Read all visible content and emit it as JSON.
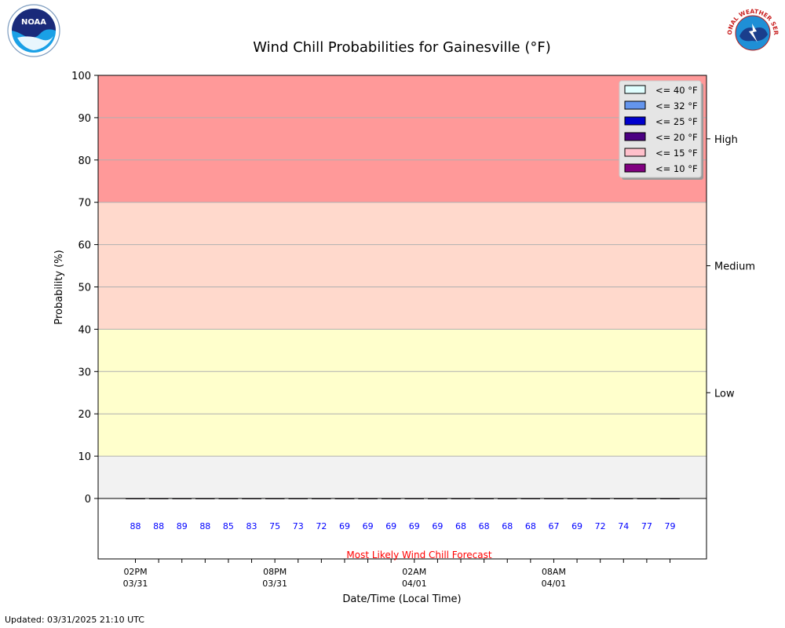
{
  "chart_data": {
    "type": "bar",
    "title": "Wind Chill Probabilities for Gainesville (°F)",
    "xlabel": "Date/Time (Local Time)",
    "ylabel": "Probability (%)",
    "ylim": [
      0,
      100
    ],
    "yticks": [
      0,
      10,
      20,
      30,
      40,
      50,
      60,
      70,
      80,
      90,
      100
    ],
    "grid": true,
    "legend_position": "top-right",
    "bands": [
      {
        "from": 0,
        "to": 10,
        "color": "#f2f2f2",
        "label": ""
      },
      {
        "from": 10,
        "to": 40,
        "color": "#ffffcc",
        "label": "Low"
      },
      {
        "from": 40,
        "to": 70,
        "color": "#ffd9cc",
        "label": "Medium"
      },
      {
        "from": 70,
        "to": 100,
        "color": "#ff9999",
        "label": "High"
      }
    ],
    "series": [
      {
        "name": "<= 40 °F",
        "color": "#e0ffff",
        "values": [
          0,
          0,
          0,
          0,
          0,
          0,
          0,
          0,
          0,
          0,
          0,
          0,
          0,
          0,
          0,
          0,
          0,
          0,
          0,
          0,
          0,
          0,
          0,
          0
        ]
      },
      {
        "name": "<= 32 °F",
        "color": "#6495ed",
        "values": [
          0,
          0,
          0,
          0,
          0,
          0,
          0,
          0,
          0,
          0,
          0,
          0,
          0,
          0,
          0,
          0,
          0,
          0,
          0,
          0,
          0,
          0,
          0,
          0
        ]
      },
      {
        "name": "<= 25 °F",
        "color": "#0000cd",
        "values": [
          0,
          0,
          0,
          0,
          0,
          0,
          0,
          0,
          0,
          0,
          0,
          0,
          0,
          0,
          0,
          0,
          0,
          0,
          0,
          0,
          0,
          0,
          0,
          0
        ]
      },
      {
        "name": "<= 20 °F",
        "color": "#4b0082",
        "values": [
          0,
          0,
          0,
          0,
          0,
          0,
          0,
          0,
          0,
          0,
          0,
          0,
          0,
          0,
          0,
          0,
          0,
          0,
          0,
          0,
          0,
          0,
          0,
          0
        ]
      },
      {
        "name": "<= 15 °F",
        "color": "#ffc0cb",
        "values": [
          0,
          0,
          0,
          0,
          0,
          0,
          0,
          0,
          0,
          0,
          0,
          0,
          0,
          0,
          0,
          0,
          0,
          0,
          0,
          0,
          0,
          0,
          0,
          0
        ]
      },
      {
        "name": "<= 10 °F",
        "color": "#800080",
        "values": [
          0,
          0,
          0,
          0,
          0,
          0,
          0,
          0,
          0,
          0,
          0,
          0,
          0,
          0,
          0,
          0,
          0,
          0,
          0,
          0,
          0,
          0,
          0,
          0
        ]
      }
    ],
    "forecast_label": "Most Likely Wind Chill Forecast",
    "forecast_color": "#ff0000",
    "forecast_value_color": "#0000ff",
    "most_likely": [
      88,
      88,
      89,
      88,
      85,
      83,
      75,
      73,
      72,
      69,
      69,
      69,
      69,
      69,
      68,
      68,
      68,
      68,
      67,
      69,
      72,
      74,
      77,
      79
    ],
    "xtick_labels": [
      {
        "index": 0,
        "time": "02PM",
        "date": "03/31"
      },
      {
        "index": 6,
        "time": "08PM",
        "date": "03/31"
      },
      {
        "index": 12,
        "time": "02AM",
        "date": "04/01"
      },
      {
        "index": 18,
        "time": "08AM",
        "date": "04/01"
      }
    ]
  },
  "updated": "Updated: 03/31/2025 21:10 UTC",
  "logos": {
    "noaa": "NOAA",
    "nws": "NATIONAL WEATHER SERVICE"
  }
}
